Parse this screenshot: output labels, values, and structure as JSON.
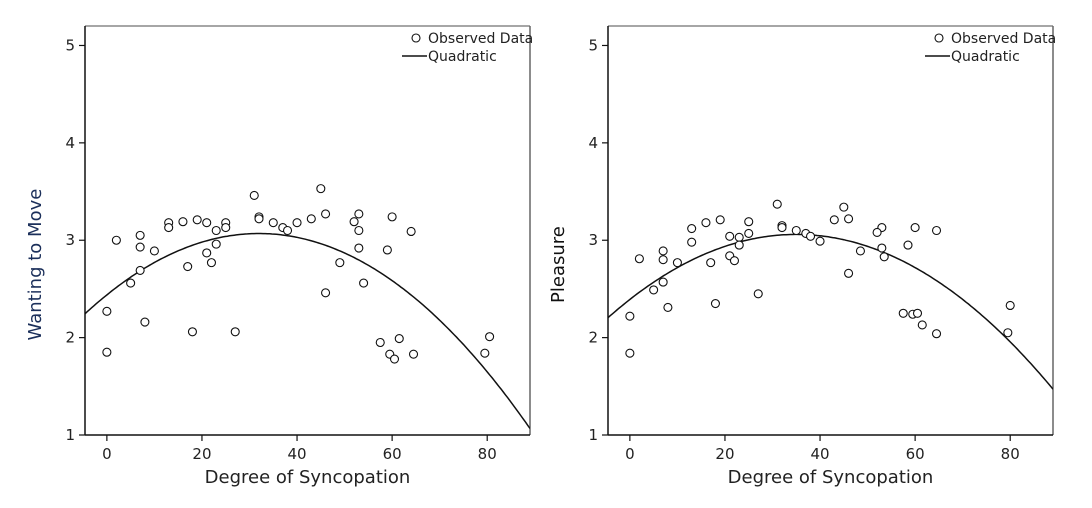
{
  "chart_data": [
    {
      "type": "scatter",
      "xlabel": "Degree of Syncopation",
      "ylabel": "Wanting to Move",
      "ylabel_color": "#1b2f5a",
      "xlim": [
        -4.6,
        89
      ],
      "ylim": [
        1,
        5.2
      ],
      "xticks": [
        "0",
        "20",
        "40",
        "60",
        "80"
      ],
      "yticks": [
        "1",
        "2",
        "3",
        "4",
        "5"
      ],
      "legend": {
        "position": "top-right",
        "entries": [
          "Observed Data",
          "Quadratic"
        ]
      },
      "fit": {
        "name": "Quadratic",
        "a": -0.000616,
        "b": 0.0394,
        "c": 2.439
      },
      "points": [
        [
          0,
          2.27
        ],
        [
          0,
          1.85
        ],
        [
          2,
          3.0
        ],
        [
          5,
          2.56
        ],
        [
          7,
          3.05
        ],
        [
          7,
          2.93
        ],
        [
          7,
          2.69
        ],
        [
          8,
          2.16
        ],
        [
          10,
          2.89
        ],
        [
          13,
          3.18
        ],
        [
          13,
          3.13
        ],
        [
          16,
          3.19
        ],
        [
          17,
          2.73
        ],
        [
          18,
          2.06
        ],
        [
          19,
          3.21
        ],
        [
          21,
          3.18
        ],
        [
          21,
          2.87
        ],
        [
          22,
          2.77
        ],
        [
          23,
          3.1
        ],
        [
          23,
          2.96
        ],
        [
          25,
          3.18
        ],
        [
          25,
          3.13
        ],
        [
          27,
          2.06
        ],
        [
          31,
          3.46
        ],
        [
          32,
          3.24
        ],
        [
          32,
          3.22
        ],
        [
          35,
          3.18
        ],
        [
          37,
          3.13
        ],
        [
          38,
          3.1
        ],
        [
          40,
          3.18
        ],
        [
          43,
          3.22
        ],
        [
          45,
          3.53
        ],
        [
          46,
          3.27
        ],
        [
          53,
          3.27
        ],
        [
          52,
          3.19
        ],
        [
          53,
          3.1
        ],
        [
          60,
          3.24
        ],
        [
          64,
          3.09
        ],
        [
          53,
          2.92
        ],
        [
          59,
          2.9
        ],
        [
          49,
          2.77
        ],
        [
          54,
          2.56
        ],
        [
          46,
          2.46
        ],
        [
          57.5,
          1.95
        ],
        [
          61.5,
          1.99
        ],
        [
          59.5,
          1.83
        ],
        [
          60.5,
          1.78
        ],
        [
          64.5,
          1.83
        ],
        [
          79.5,
          1.84
        ],
        [
          80.5,
          2.01
        ]
      ]
    },
    {
      "type": "scatter",
      "xlabel": "Degree of Syncopation",
      "ylabel": "Pleasure",
      "ylabel_color": "#111111",
      "xlim": [
        -4.6,
        89
      ],
      "ylim": [
        1,
        5.2
      ],
      "xticks": [
        "0",
        "20",
        "40",
        "60",
        "80"
      ],
      "yticks": [
        "1",
        "2",
        "3",
        "4",
        "5"
      ],
      "legend": {
        "position": "top-right",
        "entries": [
          "Observed Data",
          "Quadratic"
        ]
      },
      "fit": {
        "name": "Quadratic",
        "a": -0.000545,
        "b": 0.03815,
        "c": 2.392
      },
      "points": [
        [
          0,
          1.84
        ],
        [
          0,
          2.22
        ],
        [
          2,
          2.81
        ],
        [
          5,
          2.49
        ],
        [
          7,
          2.89
        ],
        [
          7,
          2.8
        ],
        [
          7,
          2.57
        ],
        [
          8,
          2.31
        ],
        [
          10,
          2.77
        ],
        [
          13,
          3.12
        ],
        [
          13,
          2.98
        ],
        [
          16,
          3.18
        ],
        [
          17,
          2.77
        ],
        [
          18,
          2.35
        ],
        [
          19,
          3.21
        ],
        [
          21,
          3.04
        ],
        [
          21,
          2.84
        ],
        [
          22,
          2.79
        ],
        [
          23,
          3.03
        ],
        [
          23,
          2.95
        ],
        [
          25,
          3.19
        ],
        [
          25,
          3.07
        ],
        [
          27,
          2.45
        ],
        [
          31,
          3.37
        ],
        [
          32,
          3.15
        ],
        [
          32,
          3.13
        ],
        [
          35,
          3.1
        ],
        [
          37,
          3.07
        ],
        [
          38,
          3.04
        ],
        [
          40,
          2.99
        ],
        [
          45,
          3.34
        ],
        [
          43,
          3.21
        ],
        [
          46,
          3.22
        ],
        [
          53,
          3.13
        ],
        [
          52,
          3.08
        ],
        [
          60,
          3.13
        ],
        [
          64.5,
          3.1
        ],
        [
          58.5,
          2.95
        ],
        [
          48.5,
          2.89
        ],
        [
          53,
          2.92
        ],
        [
          53.5,
          2.83
        ],
        [
          46,
          2.66
        ],
        [
          57.5,
          2.25
        ],
        [
          59.5,
          2.24
        ],
        [
          60.5,
          2.25
        ],
        [
          61.5,
          2.13
        ],
        [
          64.5,
          2.04
        ],
        [
          79.5,
          2.05
        ],
        [
          80,
          2.33
        ]
      ]
    }
  ]
}
